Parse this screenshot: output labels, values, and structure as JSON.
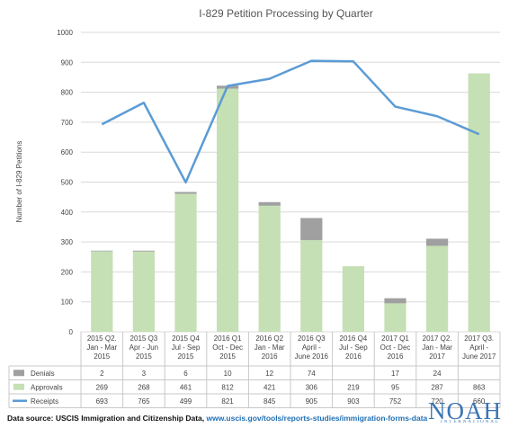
{
  "chart_data": {
    "type": "bar",
    "title": "I-829 Petition Processing by Quarter",
    "ylabel": "Number of I-829 Petitions",
    "ylim": [
      0,
      1000
    ],
    "yticks": [
      0,
      100,
      200,
      300,
      400,
      500,
      600,
      700,
      800,
      900,
      1000
    ],
    "categories": [
      [
        "2015 Q2.",
        "Jan - Mar",
        "2015"
      ],
      [
        "2015 Q3",
        "Apr - Jun",
        "2015"
      ],
      [
        "2015 Q4",
        "Jul - Sep",
        "2015"
      ],
      [
        "2016 Q1",
        "Oct - Dec",
        "2015"
      ],
      [
        "2016 Q2",
        "Jan - Mar",
        "2016"
      ],
      [
        "2016 Q3",
        "April -",
        "June 2016"
      ],
      [
        "2016 Q4",
        "Jul - Sep",
        "2016"
      ],
      [
        "2017 Q1",
        "Oct - Dec",
        "2016"
      ],
      [
        "2017 Q2.",
        "Jan - Mar",
        "2017"
      ],
      [
        "2017 Q3.",
        "April -",
        "June 2017"
      ]
    ],
    "series": [
      {
        "name": "Denials",
        "kind": "stacked-bar",
        "color": "#a0a0a0",
        "values": [
          2,
          3,
          6,
          10,
          12,
          74,
          null,
          17,
          24,
          null
        ]
      },
      {
        "name": "Approvals",
        "kind": "stacked-bar",
        "color": "#c5e0b4",
        "values": [
          269,
          268,
          461,
          812,
          421,
          306,
          219,
          95,
          287,
          863
        ]
      },
      {
        "name": "Receipts",
        "kind": "line",
        "color": "#5b9bd5",
        "values": [
          693,
          765,
          499,
          821,
          845,
          905,
          903,
          752,
          720,
          660
        ]
      }
    ],
    "table_rows": [
      {
        "name": "Denials",
        "cells": [
          "2",
          "3",
          "6",
          "10",
          "12",
          "74",
          "",
          "17",
          "24",
          ""
        ]
      },
      {
        "name": "Approvals",
        "cells": [
          "269",
          "268",
          "461",
          "812",
          "421",
          "306",
          "219",
          "95",
          "287",
          "863"
        ]
      },
      {
        "name": "Receipts",
        "cells": [
          "693",
          "765",
          "499",
          "821",
          "845",
          "905",
          "903",
          "752",
          "720",
          "660"
        ]
      }
    ],
    "grid": true,
    "legend": "data-table"
  },
  "footer": {
    "source_label": "Data source: USCIS Immigration and Citizenship Data,",
    "source_url": "www.uscis.gov/tools/reports-studies/immigration-forms-data"
  },
  "logo": {
    "word": "NOAH",
    "sub": "INTERNATIONAL"
  }
}
